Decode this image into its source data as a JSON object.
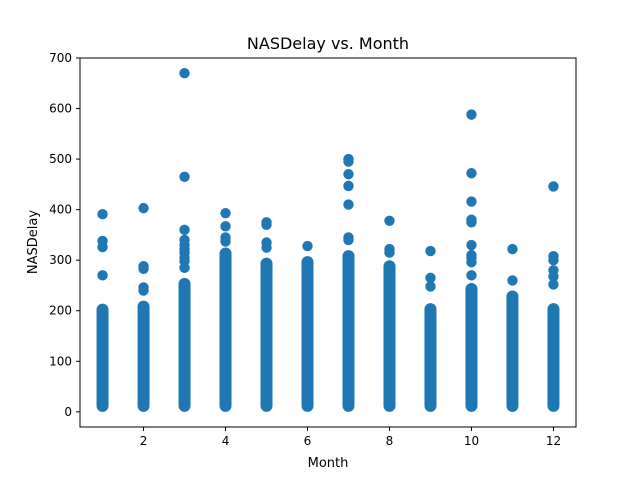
{
  "chart_data": {
    "type": "scatter",
    "title": "NASDelay vs. Month",
    "xlabel": "Month",
    "ylabel": "NASDelay",
    "xlim": [
      0.45,
      12.55
    ],
    "ylim": [
      -30,
      700
    ],
    "xticks": [
      2,
      4,
      6,
      8,
      10,
      12
    ],
    "yticks": [
      0,
      100,
      200,
      300,
      400,
      500,
      600,
      700
    ],
    "grid": false,
    "legend": "none",
    "marker_color": "#1f77b4",
    "dense_range": [
      {
        "x": 1,
        "from": 0,
        "to": 214
      },
      {
        "x": 2,
        "from": 0,
        "to": 220
      },
      {
        "x": 3,
        "from": 0,
        "to": 265
      },
      {
        "x": 4,
        "from": 0,
        "to": 325
      },
      {
        "x": 5,
        "from": 0,
        "to": 305
      },
      {
        "x": 6,
        "from": 0,
        "to": 308
      },
      {
        "x": 7,
        "from": 0,
        "to": 320
      },
      {
        "x": 8,
        "from": 0,
        "to": 300
      },
      {
        "x": 9,
        "from": 0,
        "to": 215
      },
      {
        "x": 10,
        "from": 0,
        "to": 255
      },
      {
        "x": 11,
        "from": 0,
        "to": 240
      },
      {
        "x": 12,
        "from": 0,
        "to": 215
      }
    ],
    "outliers": [
      {
        "x": 1,
        "y": 391
      },
      {
        "x": 1,
        "y": 338
      },
      {
        "x": 1,
        "y": 326
      },
      {
        "x": 1,
        "y": 270
      },
      {
        "x": 2,
        "y": 403
      },
      {
        "x": 2,
        "y": 288
      },
      {
        "x": 2,
        "y": 283
      },
      {
        "x": 2,
        "y": 246
      },
      {
        "x": 2,
        "y": 240
      },
      {
        "x": 3,
        "y": 670
      },
      {
        "x": 3,
        "y": 465
      },
      {
        "x": 3,
        "y": 360
      },
      {
        "x": 3,
        "y": 340
      },
      {
        "x": 3,
        "y": 330
      },
      {
        "x": 3,
        "y": 322
      },
      {
        "x": 3,
        "y": 315
      },
      {
        "x": 3,
        "y": 305
      },
      {
        "x": 3,
        "y": 298
      },
      {
        "x": 3,
        "y": 285
      },
      {
        "x": 4,
        "y": 393
      },
      {
        "x": 4,
        "y": 367
      },
      {
        "x": 4,
        "y": 345
      },
      {
        "x": 4,
        "y": 337
      },
      {
        "x": 5,
        "y": 375
      },
      {
        "x": 5,
        "y": 370
      },
      {
        "x": 5,
        "y": 335
      },
      {
        "x": 5,
        "y": 325
      },
      {
        "x": 6,
        "y": 328
      },
      {
        "x": 7,
        "y": 500
      },
      {
        "x": 7,
        "y": 495
      },
      {
        "x": 7,
        "y": 470
      },
      {
        "x": 7,
        "y": 447
      },
      {
        "x": 7,
        "y": 410
      },
      {
        "x": 7,
        "y": 345
      },
      {
        "x": 7,
        "y": 340
      },
      {
        "x": 8,
        "y": 378
      },
      {
        "x": 8,
        "y": 322
      },
      {
        "x": 8,
        "y": 315
      },
      {
        "x": 9,
        "y": 318
      },
      {
        "x": 9,
        "y": 265
      },
      {
        "x": 9,
        "y": 248
      },
      {
        "x": 10,
        "y": 588
      },
      {
        "x": 10,
        "y": 472
      },
      {
        "x": 10,
        "y": 416
      },
      {
        "x": 10,
        "y": 380
      },
      {
        "x": 10,
        "y": 375
      },
      {
        "x": 10,
        "y": 330
      },
      {
        "x": 10,
        "y": 310
      },
      {
        "x": 10,
        "y": 305
      },
      {
        "x": 10,
        "y": 296
      },
      {
        "x": 10,
        "y": 270
      },
      {
        "x": 11,
        "y": 322
      },
      {
        "x": 11,
        "y": 260
      },
      {
        "x": 12,
        "y": 446
      },
      {
        "x": 12,
        "y": 308
      },
      {
        "x": 12,
        "y": 300
      },
      {
        "x": 12,
        "y": 280
      },
      {
        "x": 12,
        "y": 268
      },
      {
        "x": 12,
        "y": 252
      }
    ]
  }
}
